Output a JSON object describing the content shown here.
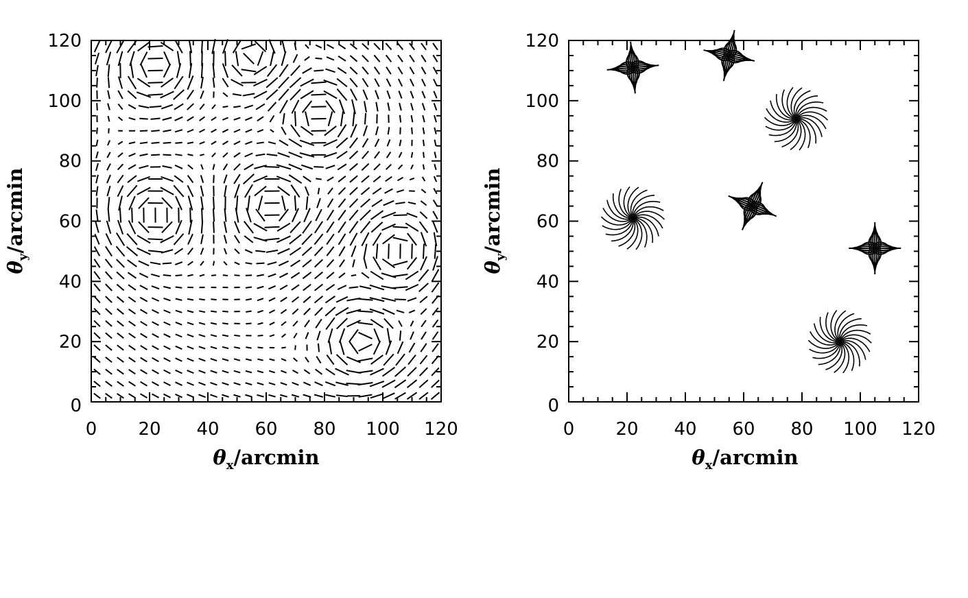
{
  "chart_data": [
    {
      "type": "scatter",
      "panel": "left",
      "description_kind": "shear field (stick plot)",
      "title": "",
      "xlabel": "θx/arcmin",
      "ylabel": "θy/arcmin",
      "xlim": [
        0,
        120
      ],
      "ylim": [
        0,
        120
      ],
      "xticks": [
        0,
        20,
        40,
        60,
        80,
        100,
        120
      ],
      "yticks": [
        0,
        20,
        40,
        60,
        80,
        100,
        120
      ],
      "grid": false,
      "lens_centres": [
        {
          "x": 22,
          "y": 112,
          "kind": "tangential"
        },
        {
          "x": 55,
          "y": 115,
          "kind": "tangential"
        },
        {
          "x": 78,
          "y": 95,
          "kind": "tangential"
        },
        {
          "x": 22,
          "y": 62,
          "kind": "tangential"
        },
        {
          "x": 62,
          "y": 65,
          "kind": "tangential"
        },
        {
          "x": 105,
          "y": 50,
          "kind": "tangential"
        },
        {
          "x": 93,
          "y": 20,
          "kind": "tangential"
        }
      ]
    },
    {
      "type": "scatter",
      "panel": "right",
      "description_kind": "reconstructed structures",
      "title": "",
      "xlabel": "θx/arcmin",
      "ylabel": "θy/arcmin",
      "xlim": [
        0,
        120
      ],
      "ylim": [
        0,
        120
      ],
      "xticks": [
        0,
        20,
        40,
        60,
        80,
        100,
        120
      ],
      "yticks": [
        0,
        20,
        40,
        60,
        80,
        100,
        120
      ],
      "grid": false,
      "features": [
        {
          "x": 22,
          "y": 111,
          "shape": "cross"
        },
        {
          "x": 55,
          "y": 115,
          "shape": "cross"
        },
        {
          "x": 78,
          "y": 94,
          "shape": "swirl"
        },
        {
          "x": 22,
          "y": 61,
          "shape": "swirl"
        },
        {
          "x": 63,
          "y": 65,
          "shape": "cross"
        },
        {
          "x": 105,
          "y": 51,
          "shape": "cross"
        },
        {
          "x": 93,
          "y": 20,
          "shape": "swirl"
        }
      ]
    }
  ],
  "labels": {
    "left_xlabel_main": "θ",
    "left_xlabel_sub": "x",
    "left_xlabel_rest": "/arcmin",
    "left_ylabel_main": "θ",
    "left_ylabel_sub": "y",
    "left_ylabel_rest": "/arcmin",
    "right_xlabel_main": "θ",
    "right_xlabel_sub": "x",
    "right_xlabel_rest": "/arcmin",
    "right_ylabel_main": "θ",
    "right_ylabel_sub": "y",
    "right_ylabel_rest": "/arcmin"
  }
}
